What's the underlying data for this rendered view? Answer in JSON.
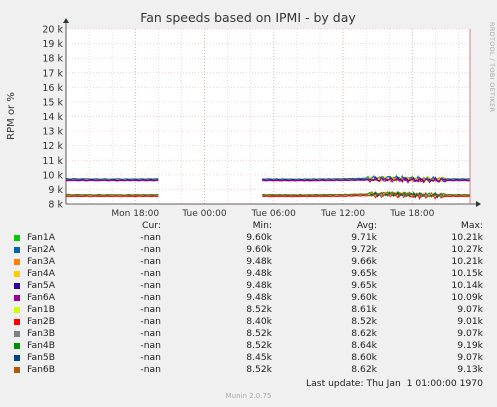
{
  "chart_data": {
    "type": "line",
    "title": "Fan speeds based on IPMI - by day",
    "ylabel": "RPM or %",
    "xlabel": "",
    "ylim": [
      8000,
      20000
    ],
    "y_ticks": [
      {
        "v": 8000,
        "label": "8 k"
      },
      {
        "v": 9000,
        "label": "9 k"
      },
      {
        "v": 10000,
        "label": "10 k"
      },
      {
        "v": 11000,
        "label": "11 k"
      },
      {
        "v": 12000,
        "label": "12 k"
      },
      {
        "v": 13000,
        "label": "13 k"
      },
      {
        "v": 14000,
        "label": "14 k"
      },
      {
        "v": 15000,
        "label": "15 k"
      },
      {
        "v": 16000,
        "label": "16 k"
      },
      {
        "v": 17000,
        "label": "17 k"
      },
      {
        "v": 18000,
        "label": "18 k"
      },
      {
        "v": 19000,
        "label": "19 k"
      },
      {
        "v": 20000,
        "label": "20 k"
      }
    ],
    "x_ticks": [
      {
        "t": 6,
        "label": "Mon 18:00"
      },
      {
        "t": 12,
        "label": "Tue 00:00"
      },
      {
        "t": 18,
        "label": "Tue 06:00"
      },
      {
        "t": 24,
        "label": "Tue 12:00"
      },
      {
        "t": 30,
        "label": "Tue 18:00"
      }
    ],
    "xlim": [
      0,
      35
    ],
    "grid": true,
    "series": [
      {
        "name": "Fan1A",
        "color": "#00cc00",
        "group": "A",
        "x": [
          0,
          5,
          8,
          13,
          17,
          20,
          24,
          28,
          31,
          35
        ],
        "y": [
          9720,
          9700,
          9720,
          null,
          9710,
          9700,
          9720,
          9800,
          9720,
          9710
        ]
      },
      {
        "name": "Fan2A",
        "color": "#0066b3",
        "group": "A",
        "x": [
          0,
          5,
          8,
          13,
          17,
          20,
          24,
          28,
          31,
          35
        ],
        "y": [
          9730,
          9710,
          9720,
          null,
          9720,
          9700,
          9730,
          9800,
          9720,
          9720
        ]
      },
      {
        "name": "Fan3A",
        "color": "#ff8000",
        "group": "A",
        "x": [
          0,
          5,
          8,
          13,
          17,
          20,
          24,
          28,
          31,
          35
        ],
        "y": [
          9660,
          9650,
          9660,
          null,
          9660,
          9650,
          9670,
          9700,
          9660,
          9660
        ]
      },
      {
        "name": "Fan4A",
        "color": "#ffcc00",
        "group": "A",
        "x": [
          0,
          5,
          8,
          13,
          17,
          20,
          24,
          28,
          31,
          35
        ],
        "y": [
          9650,
          9650,
          9650,
          null,
          9650,
          9640,
          9660,
          9700,
          9650,
          9650
        ]
      },
      {
        "name": "Fan5A",
        "color": "#330099",
        "group": "A",
        "x": [
          0,
          5,
          8,
          13,
          17,
          20,
          24,
          28,
          31,
          35
        ],
        "y": [
          9650,
          9640,
          9650,
          null,
          9650,
          9640,
          9650,
          9700,
          9650,
          9650
        ]
      },
      {
        "name": "Fan6A",
        "color": "#990099",
        "group": "A",
        "x": [
          0,
          5,
          8,
          13,
          17,
          20,
          24,
          28,
          31,
          35
        ],
        "y": [
          9600,
          9600,
          9600,
          null,
          9600,
          9590,
          9610,
          9650,
          9600,
          9600
        ]
      },
      {
        "name": "Fan1B",
        "color": "#ccff00",
        "group": "B",
        "x": [
          0,
          5,
          8,
          13,
          17,
          20,
          24,
          28,
          31,
          35
        ],
        "y": [
          8610,
          8600,
          8610,
          null,
          8610,
          8600,
          8620,
          8700,
          8610,
          8610
        ]
      },
      {
        "name": "Fan2B",
        "color": "#ff0000",
        "group": "B",
        "x": [
          0,
          5,
          8,
          13,
          17,
          20,
          24,
          28,
          31,
          35
        ],
        "y": [
          8520,
          8520,
          8520,
          null,
          8520,
          8510,
          8530,
          8600,
          8520,
          8520
        ]
      },
      {
        "name": "Fan3B",
        "color": "#808080",
        "group": "B",
        "x": [
          0,
          5,
          8,
          13,
          17,
          20,
          24,
          28,
          31,
          35
        ],
        "y": [
          8620,
          8610,
          8620,
          null,
          8620,
          8610,
          8630,
          8700,
          8620,
          8620
        ]
      },
      {
        "name": "Fan4B",
        "color": "#008f00",
        "group": "B",
        "x": [
          0,
          5,
          8,
          13,
          17,
          20,
          24,
          28,
          31,
          35
        ],
        "y": [
          8640,
          8630,
          8640,
          null,
          8640,
          8630,
          8650,
          8720,
          8640,
          8640
        ]
      },
      {
        "name": "Fan5B",
        "color": "#00487d",
        "group": "B",
        "x": [
          0,
          5,
          8,
          13,
          17,
          20,
          24,
          28,
          31,
          35
        ],
        "y": [
          8600,
          8600,
          8600,
          null,
          8600,
          8590,
          8610,
          8680,
          8600,
          8600
        ]
      },
      {
        "name": "Fan6B",
        "color": "#b35a00",
        "group": "B",
        "x": [
          0,
          5,
          8,
          13,
          17,
          20,
          24,
          28,
          31,
          35
        ],
        "y": [
          8620,
          8610,
          8620,
          null,
          8620,
          8610,
          8630,
          8700,
          8620,
          8620
        ]
      }
    ]
  },
  "legend": {
    "headers": {
      "cur": "Cur:",
      "min": "Min:",
      "avg": "Avg:",
      "max": "Max:"
    },
    "rows": [
      {
        "name": "Fan1A",
        "color": "#00cc00",
        "cur": "-nan",
        "min": "9.60k",
        "avg": "9.71k",
        "max": "10.21k"
      },
      {
        "name": "Fan2A",
        "color": "#0066b3",
        "cur": "-nan",
        "min": "9.60k",
        "avg": "9.72k",
        "max": "10.27k"
      },
      {
        "name": "Fan3A",
        "color": "#ff8000",
        "cur": "-nan",
        "min": "9.48k",
        "avg": "9.66k",
        "max": "10.21k"
      },
      {
        "name": "Fan4A",
        "color": "#ffcc00",
        "cur": "-nan",
        "min": "9.48k",
        "avg": "9.65k",
        "max": "10.15k"
      },
      {
        "name": "Fan5A",
        "color": "#330099",
        "cur": "-nan",
        "min": "9.48k",
        "avg": "9.65k",
        "max": "10.14k"
      },
      {
        "name": "Fan6A",
        "color": "#990099",
        "cur": "-nan",
        "min": "9.48k",
        "avg": "9.60k",
        "max": "10.09k"
      },
      {
        "name": "Fan1B",
        "color": "#ccff00",
        "cur": "-nan",
        "min": "8.52k",
        "avg": "8.61k",
        "max": "9.07k"
      },
      {
        "name": "Fan2B",
        "color": "#ff0000",
        "cur": "-nan",
        "min": "8.40k",
        "avg": "8.52k",
        "max": "9.01k"
      },
      {
        "name": "Fan3B",
        "color": "#808080",
        "cur": "-nan",
        "min": "8.52k",
        "avg": "8.62k",
        "max": "9.07k"
      },
      {
        "name": "Fan4B",
        "color": "#008f00",
        "cur": "-nan",
        "min": "8.52k",
        "avg": "8.64k",
        "max": "9.19k"
      },
      {
        "name": "Fan5B",
        "color": "#00487d",
        "cur": "-nan",
        "min": "8.45k",
        "avg": "8.60k",
        "max": "9.07k"
      },
      {
        "name": "Fan6B",
        "color": "#b35a00",
        "cur": "-nan",
        "min": "8.52k",
        "avg": "8.62k",
        "max": "9.13k"
      }
    ]
  },
  "last_update": "Last update: Thu Jan  1 01:00:00 1970",
  "footer": "Munin 2.0.75",
  "side_text": "RRDTOOL / TOBI OETIKER"
}
